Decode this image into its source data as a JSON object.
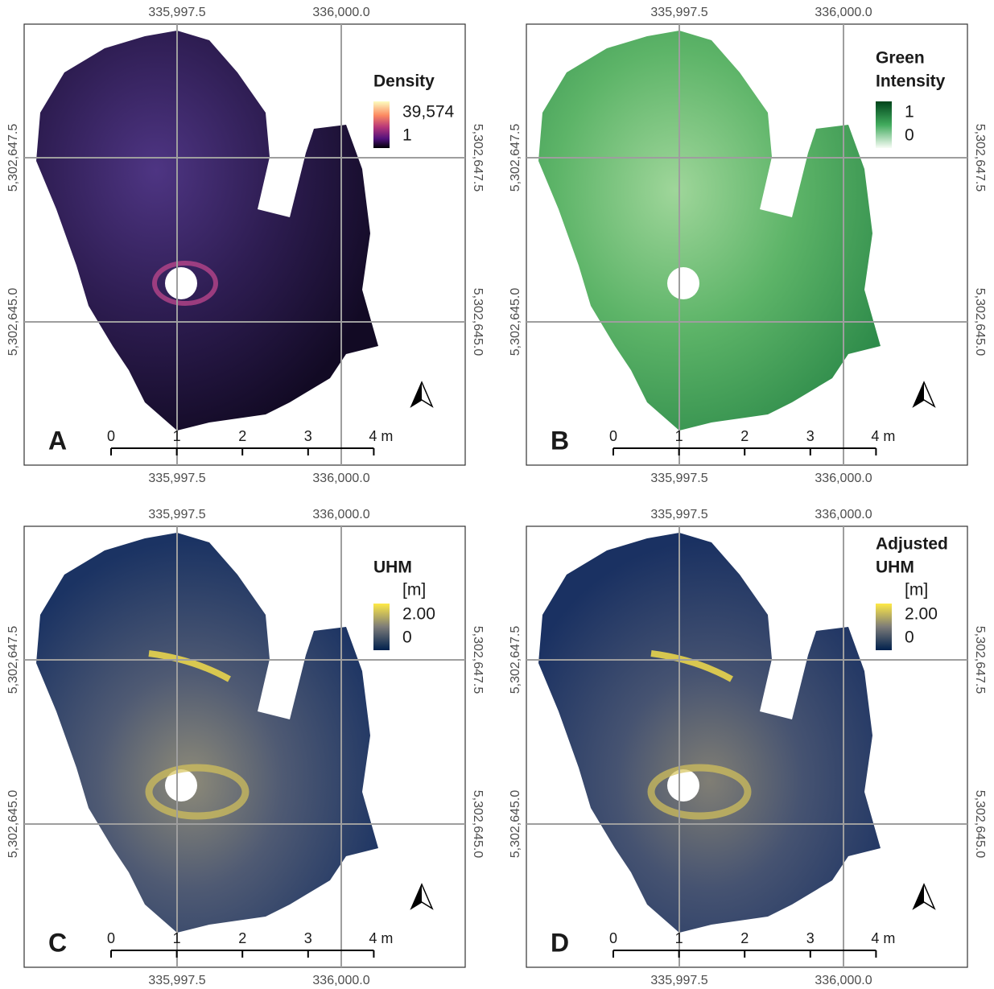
{
  "axes": {
    "x_ticks": [
      {
        "value": 335997.5,
        "label": "335,997.5"
      },
      {
        "value": 336000.0,
        "label": "336,000.0"
      }
    ],
    "y_ticks": [
      {
        "value": 5302647.5,
        "label": "5,302,647.5"
      },
      {
        "value": 5302645.0,
        "label": "5,302,645.0"
      }
    ]
  },
  "scale_bar": {
    "ticks": [
      0,
      1,
      2,
      3,
      {
        "value": 4,
        "label": "4 m"
      }
    ]
  },
  "panels": [
    {
      "label": "A",
      "legend": {
        "title": [
          "Density"
        ],
        "labels": [
          {
            "value": 39574,
            "label": "39,574"
          },
          1
        ]
      }
    },
    {
      "label": "B",
      "legend": {
        "title": [
          "Green",
          "Intensity"
        ],
        "labels": [
          1,
          0
        ]
      }
    },
    {
      "label": "C",
      "legend": {
        "title": [
          "UHM"
        ],
        "unit": "[m]",
        "labels": [
          {
            "value": 2,
            "label": "2.00"
          },
          0
        ]
      }
    },
    {
      "label": "D",
      "legend": {
        "title": [
          "Adjusted",
          "UHM"
        ],
        "unit": "[m]",
        "labels": [
          {
            "value": 2,
            "label": "2.00"
          },
          0
        ]
      }
    }
  ]
}
